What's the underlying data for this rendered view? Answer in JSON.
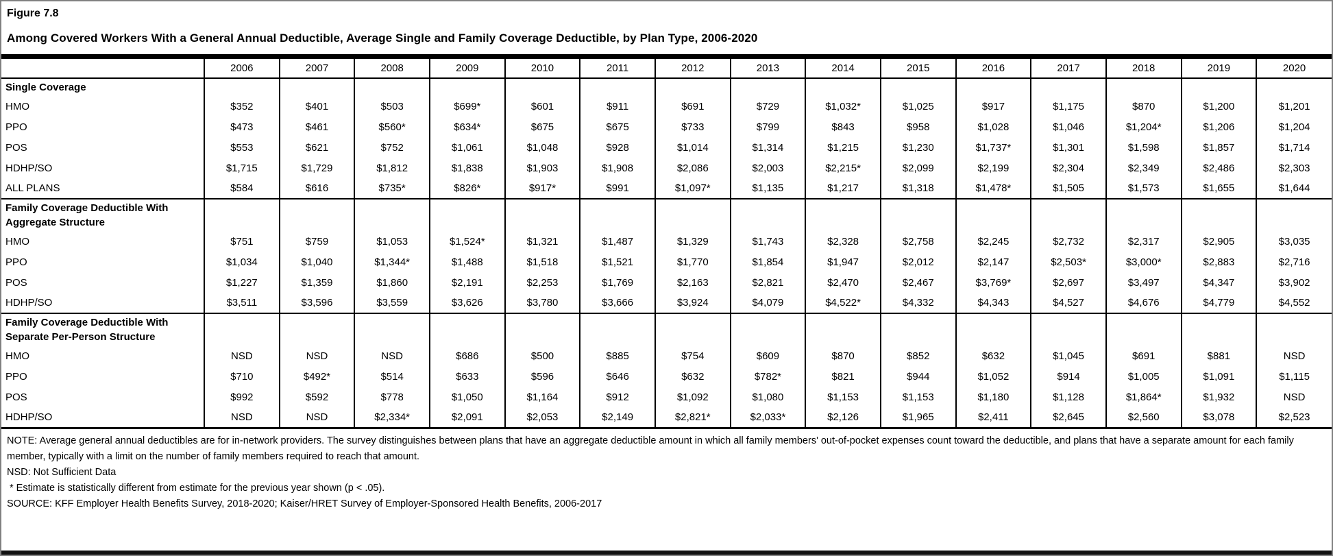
{
  "figure_label": "Figure 7.8",
  "title": "Among Covered Workers With a General Annual Deductible, Average Single and Family Coverage Deductible, by Plan Type, 2006-2020",
  "colors": {
    "text": "#000000",
    "rule": "#000000",
    "outer_border": "#808080",
    "background": "#ffffff"
  },
  "chart_data": {
    "type": "table",
    "title": "Among Covered Workers With a General Annual Deductible, Average Single and Family Coverage Deductible, by Plan Type, 2006-2020",
    "figure_label": "Figure 7.8",
    "columns": [
      "2006",
      "2007",
      "2008",
      "2009",
      "2010",
      "2011",
      "2012",
      "2013",
      "2014",
      "2015",
      "2016",
      "2017",
      "2018",
      "2019",
      "2020"
    ],
    "sections": [
      {
        "label_lines": [
          "Single Coverage"
        ],
        "rows": [
          {
            "label": "HMO",
            "values": [
              "$352",
              "$401",
              "$503",
              "$699*",
              "$601",
              "$911",
              "$691",
              "$729",
              "$1,032*",
              "$1,025",
              "$917",
              "$1,175",
              "$870",
              "$1,200",
              "$1,201"
            ]
          },
          {
            "label": "PPO",
            "values": [
              "$473",
              "$461",
              "$560*",
              "$634*",
              "$675",
              "$675",
              "$733",
              "$799",
              "$843",
              "$958",
              "$1,028",
              "$1,046",
              "$1,204*",
              "$1,206",
              "$1,204"
            ]
          },
          {
            "label": "POS",
            "values": [
              "$553",
              "$621",
              "$752",
              "$1,061",
              "$1,048",
              "$928",
              "$1,014",
              "$1,314",
              "$1,215",
              "$1,230",
              "$1,737*",
              "$1,301",
              "$1,598",
              "$1,857",
              "$1,714"
            ]
          },
          {
            "label": "HDHP/SO",
            "values": [
              "$1,715",
              "$1,729",
              "$1,812",
              "$1,838",
              "$1,903",
              "$1,908",
              "$2,086",
              "$2,003",
              "$2,215*",
              "$2,099",
              "$2,199",
              "$2,304",
              "$2,349",
              "$2,486",
              "$2,303"
            ]
          },
          {
            "label": "ALL PLANS",
            "values": [
              "$584",
              "$616",
              "$735*",
              "$826*",
              "$917*",
              "$991",
              "$1,097*",
              "$1,135",
              "$1,217",
              "$1,318",
              "$1,478*",
              "$1,505",
              "$1,573",
              "$1,655",
              "$1,644"
            ]
          }
        ]
      },
      {
        "label_lines": [
          "Family Coverage Deductible With",
          "Aggregate Structure"
        ],
        "rows": [
          {
            "label": "HMO",
            "values": [
              "$751",
              "$759",
              "$1,053",
              "$1,524*",
              "$1,321",
              "$1,487",
              "$1,329",
              "$1,743",
              "$2,328",
              "$2,758",
              "$2,245",
              "$2,732",
              "$2,317",
              "$2,905",
              "$3,035"
            ]
          },
          {
            "label": "PPO",
            "values": [
              "$1,034",
              "$1,040",
              "$1,344*",
              "$1,488",
              "$1,518",
              "$1,521",
              "$1,770",
              "$1,854",
              "$1,947",
              "$2,012",
              "$2,147",
              "$2,503*",
              "$3,000*",
              "$2,883",
              "$2,716"
            ]
          },
          {
            "label": "POS",
            "values": [
              "$1,227",
              "$1,359",
              "$1,860",
              "$2,191",
              "$2,253",
              "$1,769",
              "$2,163",
              "$2,821",
              "$2,470",
              "$2,467",
              "$3,769*",
              "$2,697",
              "$3,497",
              "$4,347",
              "$3,902"
            ]
          },
          {
            "label": "HDHP/SO",
            "values": [
              "$3,511",
              "$3,596",
              "$3,559",
              "$3,626",
              "$3,780",
              "$3,666",
              "$3,924",
              "$4,079",
              "$4,522*",
              "$4,332",
              "$4,343",
              "$4,527",
              "$4,676",
              "$4,779",
              "$4,552"
            ]
          }
        ]
      },
      {
        "label_lines": [
          "Family Coverage Deductible With",
          "Separate Per-Person Structure"
        ],
        "rows": [
          {
            "label": "HMO",
            "values": [
              "NSD",
              "NSD",
              "NSD",
              "$686",
              "$500",
              "$885",
              "$754",
              "$609",
              "$870",
              "$852",
              "$632",
              "$1,045",
              "$691",
              "$881",
              "NSD"
            ]
          },
          {
            "label": "PPO",
            "values": [
              "$710",
              "$492*",
              "$514",
              "$633",
              "$596",
              "$646",
              "$632",
              "$782*",
              "$821",
              "$944",
              "$1,052",
              "$914",
              "$1,005",
              "$1,091",
              "$1,115"
            ]
          },
          {
            "label": "POS",
            "values": [
              "$992",
              "$592",
              "$778",
              "$1,050",
              "$1,164",
              "$912",
              "$1,092",
              "$1,080",
              "$1,153",
              "$1,153",
              "$1,180",
              "$1,128",
              "$1,864*",
              "$1,932",
              "NSD"
            ]
          },
          {
            "label": "HDHP/SO",
            "values": [
              "NSD",
              "NSD",
              "$2,334*",
              "$2,091",
              "$2,053",
              "$2,149",
              "$2,821*",
              "$2,033*",
              "$2,126",
              "$1,965",
              "$2,411",
              "$2,645",
              "$2,560",
              "$3,078",
              "$2,523"
            ]
          }
        ]
      }
    ]
  },
  "notes": {
    "note": "NOTE: Average general annual deductibles are for in-network providers. The survey distinguishes between plans that have an aggregate deductible amount in which all family members' out-of-pocket expenses count toward the deductible, and plans that have a separate amount for each family member, typically with a limit on the number of family members required to reach that amount.",
    "nsd": "NSD: Not Sufficient Data",
    "asterisk": "* Estimate is statistically different from estimate for the previous year shown (p < .05).",
    "source": "SOURCE: KFF Employer Health Benefits Survey, 2018-2020; Kaiser/HRET Survey of Employer-Sponsored Health Benefits, 2006-2017"
  }
}
